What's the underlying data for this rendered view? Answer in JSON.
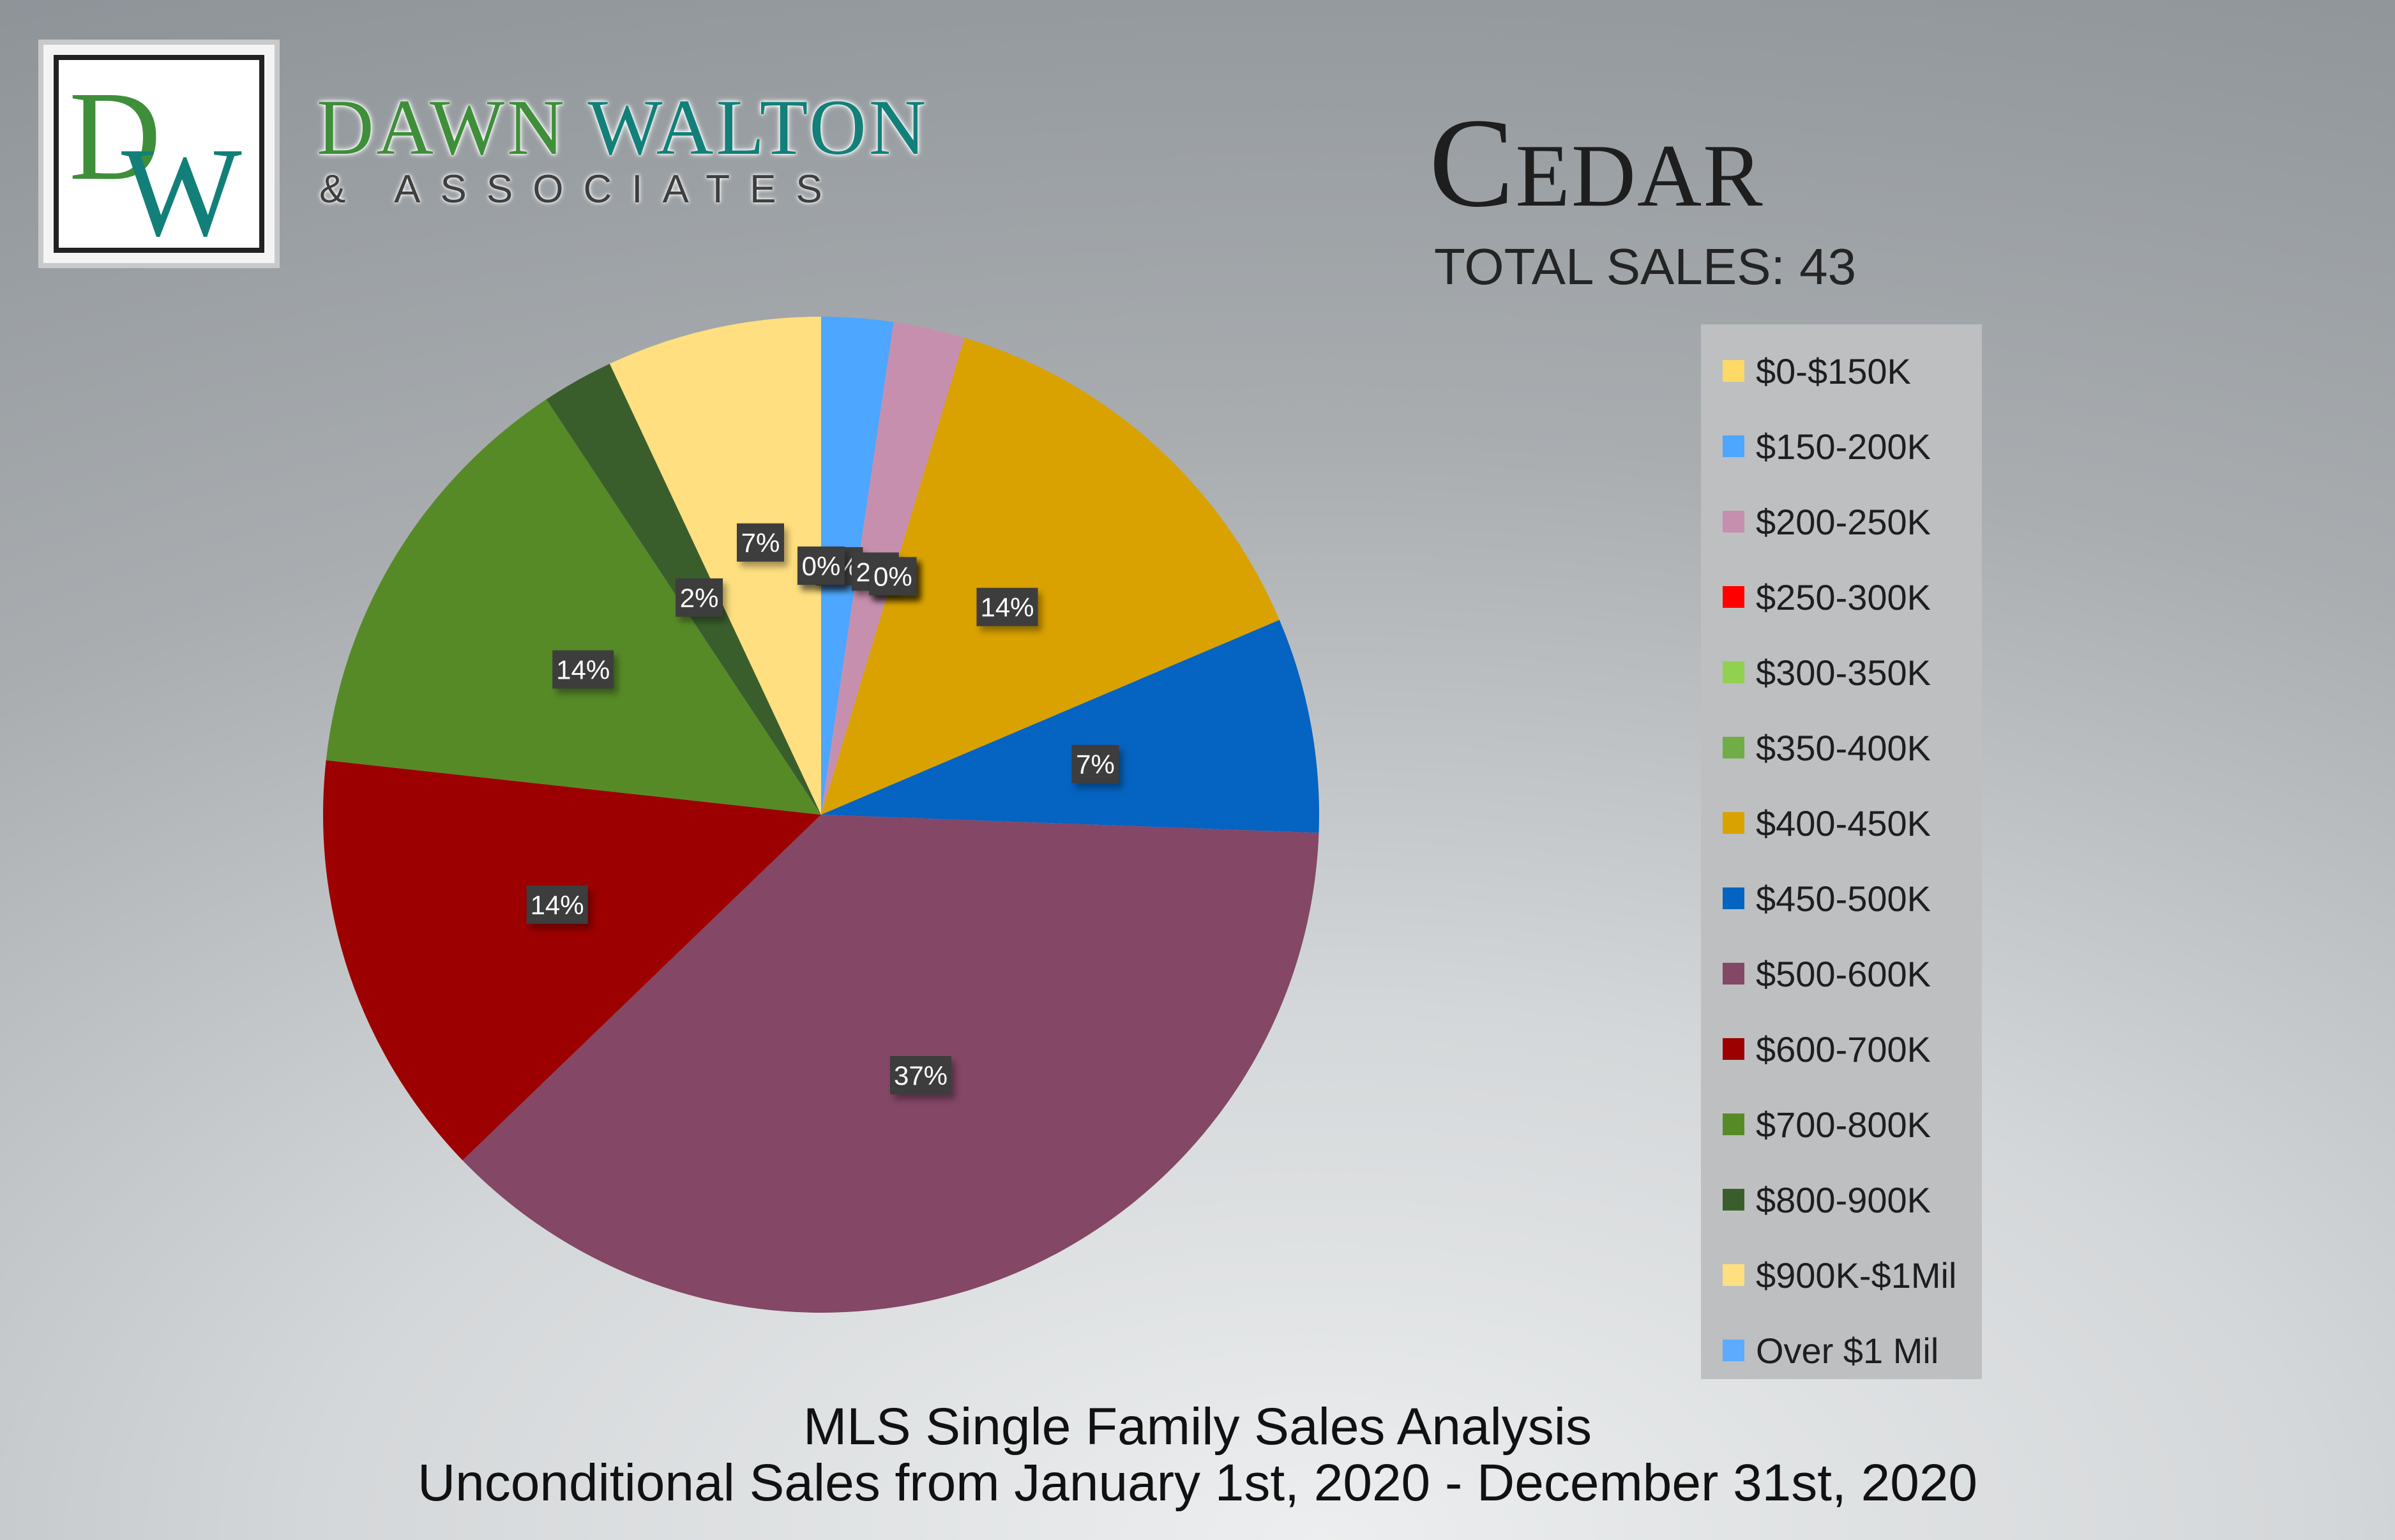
{
  "brand": {
    "monogram_d": "D",
    "monogram_w": "W",
    "name_first": "DAWN",
    "name_second": "WALTON",
    "subtitle": "& ASSOCIATES"
  },
  "header": {
    "city": "Cedar",
    "total_sales": "TOTAL SALES: 43"
  },
  "footer": {
    "line1": "MLS Single Family Sales Analysis",
    "line2": "Unconditional Sales from January 1st, 2020 - December 31st, 2020"
  },
  "chart_data": {
    "type": "pie",
    "title": "",
    "categories": [
      "$0-$150K",
      "$150-200K",
      "$200-250K",
      "$250-300K",
      "$300-350K",
      "$350-400K",
      "$400-450K",
      "$450-500K",
      "$500-600K",
      "$600-700K",
      "$700-800K",
      "$800-900K",
      "$900K-$1Mil",
      "Over $1 Mil"
    ],
    "values": [
      0,
      1,
      1,
      0,
      0,
      0,
      6,
      3,
      16,
      6,
      6,
      1,
      3,
      0
    ],
    "colors": [
      "#ffd966",
      "#4da6ff",
      "#c78fae",
      "#ff0000",
      "#92d050",
      "#70ad47",
      "#d9a200",
      "#0563c1",
      "#844766",
      "#9c0000",
      "#568a27",
      "#3a5e2b",
      "#ffdf80",
      "#5cabff"
    ],
    "data_labels": [
      "0%",
      "2%",
      "2%",
      "0%",
      "0%",
      "0%",
      "14%",
      "7%",
      "37%",
      "14%",
      "14%",
      "2%",
      "7%",
      "0%"
    ],
    "total": 43,
    "legend_position": "right"
  }
}
